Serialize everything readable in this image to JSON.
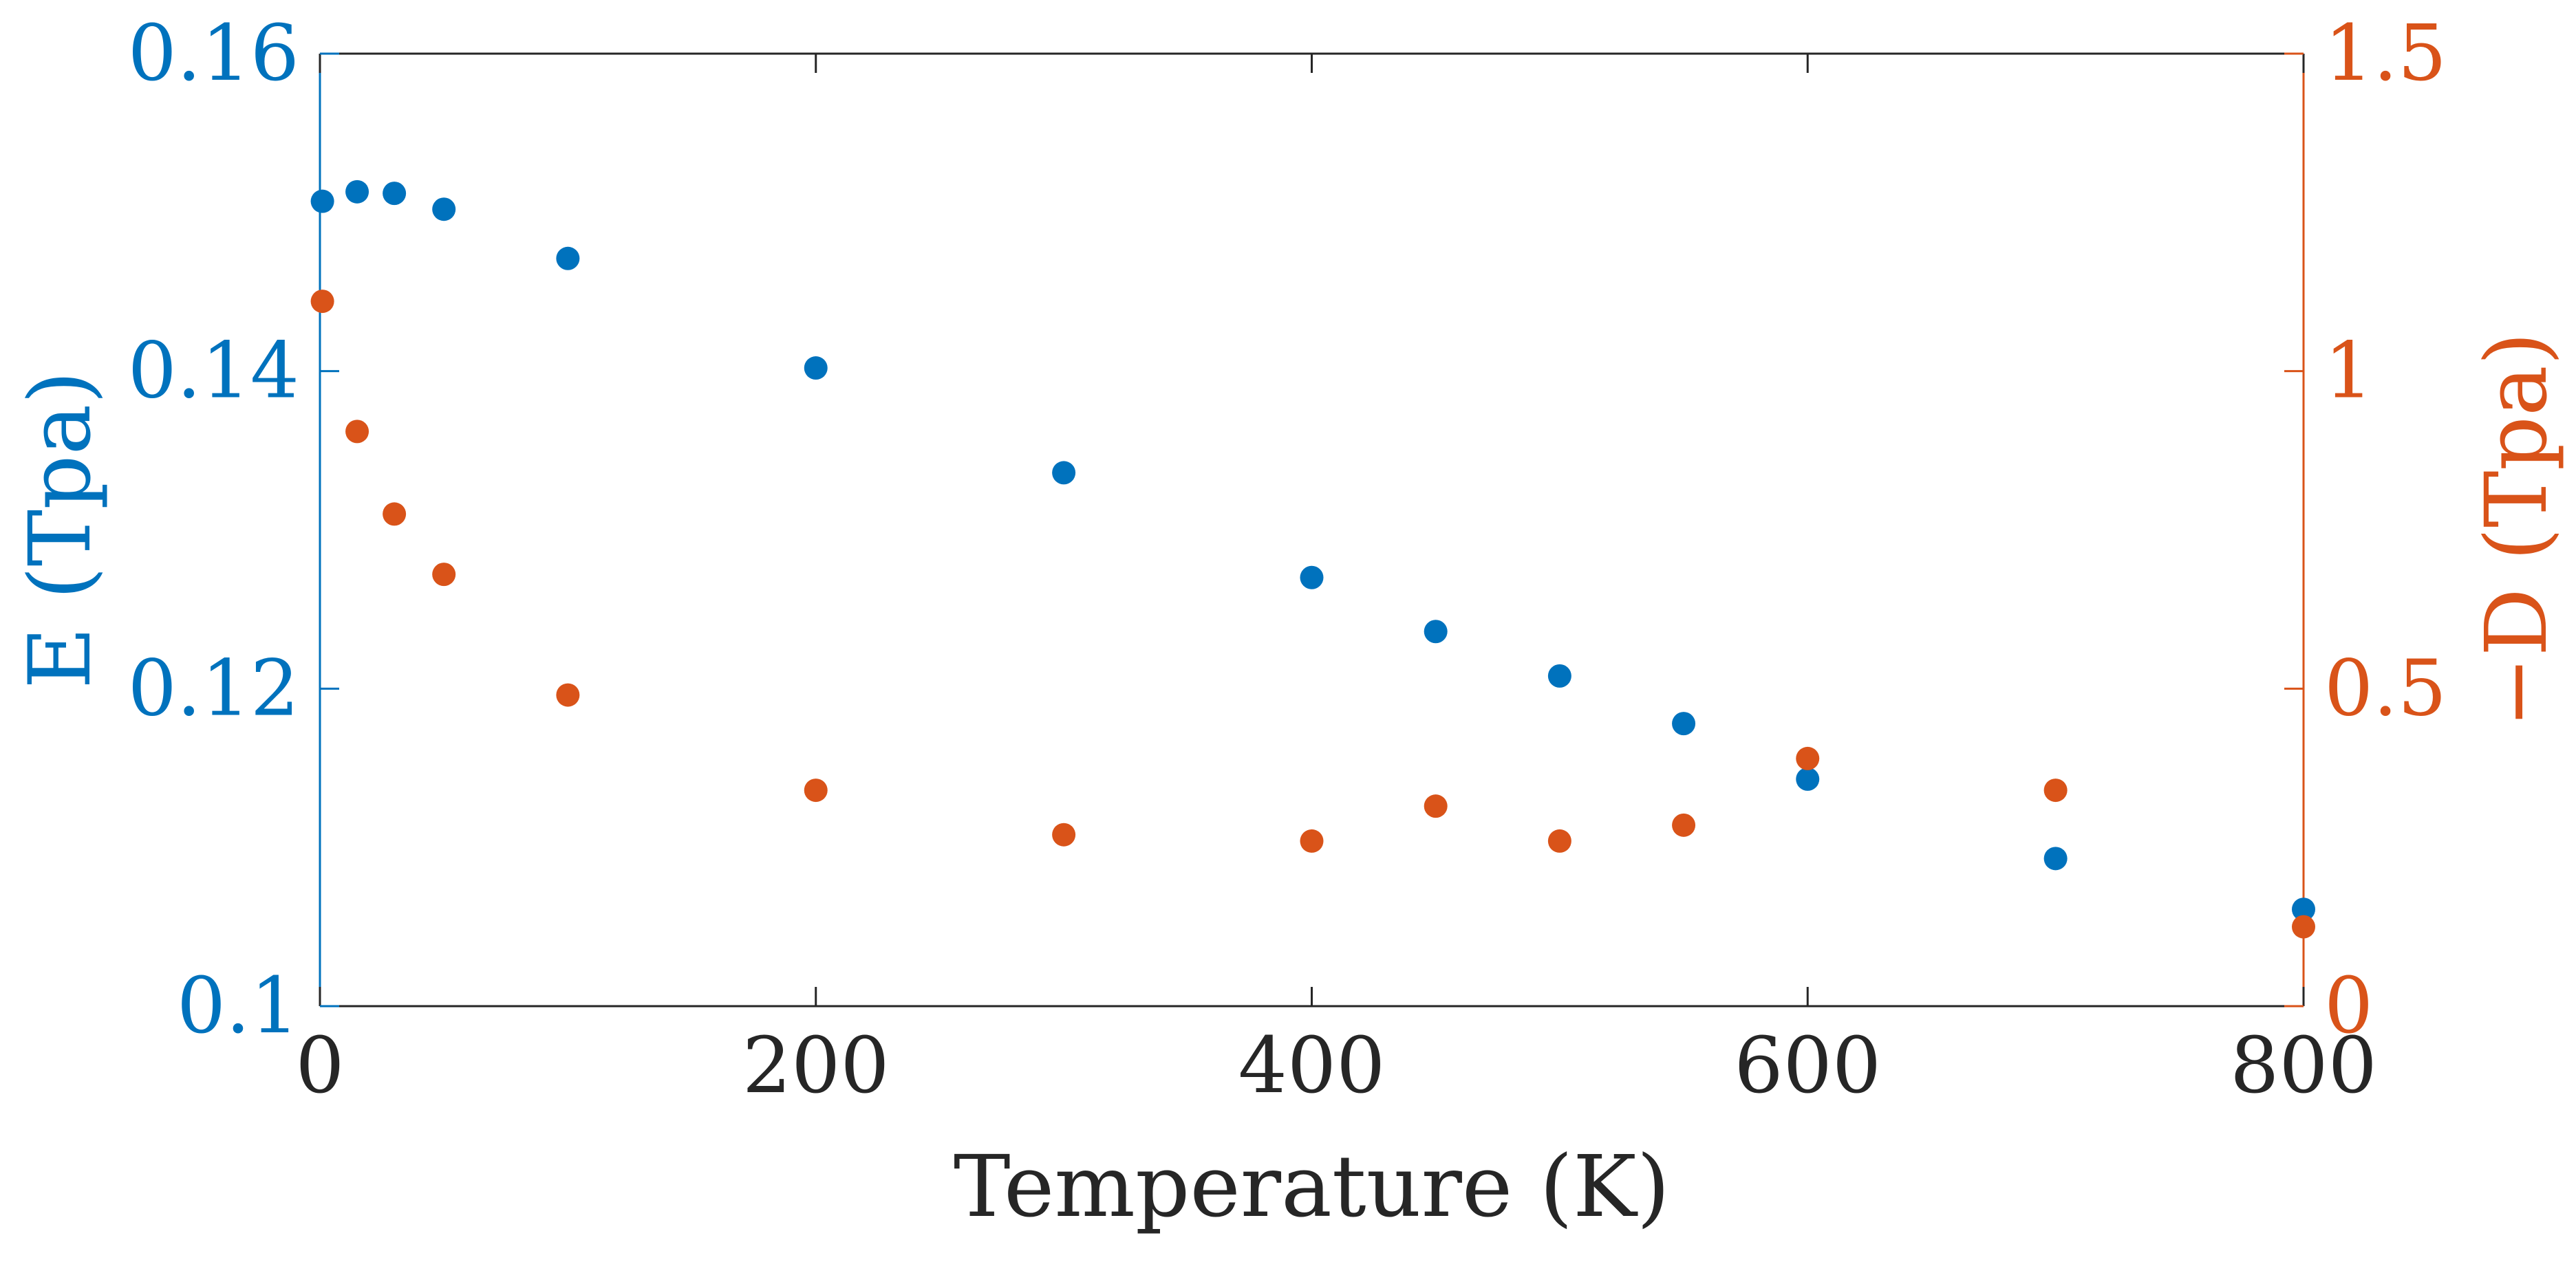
{
  "chart_data": {
    "type": "scatter",
    "xlabel": "Temperature (K)",
    "ylabel_left": "E (Tpa)",
    "ylabel_right": "−D (Tpa)",
    "xlim": [
      0,
      800
    ],
    "ylim_left": [
      0.1,
      0.16
    ],
    "ylim_right": [
      0,
      1.5
    ],
    "x_ticks": [
      "0",
      "200",
      "400",
      "600",
      "800"
    ],
    "y_left_ticks": [
      "0.1",
      "0.12",
      "0.14",
      "0.16"
    ],
    "y_right_ticks": [
      "0",
      "0.5",
      "1",
      "1.5"
    ],
    "grid": false,
    "series": [
      {
        "axis": "left",
        "color": "#0072BD",
        "points": [
          [
            1,
            0.1507
          ],
          [
            15,
            0.1513
          ],
          [
            30,
            0.1512
          ],
          [
            50,
            0.1502
          ],
          [
            100,
            0.1471
          ],
          [
            200,
            0.1402
          ],
          [
            300,
            0.1336
          ],
          [
            400,
            0.127
          ],
          [
            450,
            0.1236
          ],
          [
            500,
            0.1208
          ],
          [
            550,
            0.1178
          ],
          [
            600,
            0.1143
          ],
          [
            700,
            0.1093
          ],
          [
            800,
            0.1061
          ]
        ]
      },
      {
        "axis": "right",
        "color": "#D95319",
        "points": [
          [
            1,
            1.11
          ],
          [
            15,
            0.905
          ],
          [
            30,
            0.775
          ],
          [
            50,
            0.68
          ],
          [
            100,
            0.49
          ],
          [
            200,
            0.34
          ],
          [
            300,
            0.27
          ],
          [
            400,
            0.26
          ],
          [
            450,
            0.315
          ],
          [
            500,
            0.26
          ],
          [
            550,
            0.285
          ],
          [
            600,
            0.39
          ],
          [
            700,
            0.34
          ],
          [
            800,
            0.125
          ]
        ]
      }
    ]
  }
}
